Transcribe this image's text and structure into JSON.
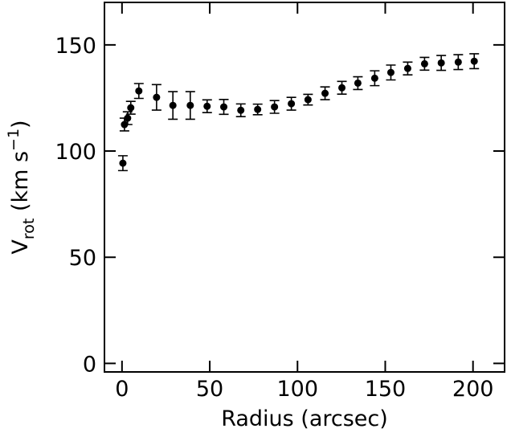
{
  "chart_data": {
    "type": "scatter",
    "xlabel": "Radius (arcsec)",
    "ylabel": {
      "main": "V",
      "sub": "rot",
      "rest": " (km s",
      "sup": "−1",
      "end": ")"
    },
    "color": "#000000",
    "x": [
      0.5,
      1.4,
      3.2,
      5,
      9.6,
      19.7,
      29,
      38.9,
      48.5,
      58,
      67.7,
      77.3,
      86.9,
      96.5,
      106,
      115.7,
      125.3,
      134.4,
      144,
      153.2,
      162.8,
      172.4,
      181.9,
      191.6,
      200.7
    ],
    "values": [
      94.3,
      112.5,
      115.5,
      120.4,
      128.3,
      125.3,
      121.5,
      121.5,
      121.1,
      120.8,
      119.2,
      119.6,
      120.8,
      122.3,
      124.2,
      127.2,
      129.8,
      132,
      134.3,
      137,
      138.9,
      141.1,
      141.5,
      141.9,
      142.3
    ],
    "errors": [
      3.5,
      3,
      3,
      3,
      3.5,
      6,
      6.5,
      6.5,
      3,
      3.5,
      3,
      2.5,
      3,
      3,
      2.5,
      3,
      3,
      3,
      3.5,
      3.5,
      3,
      3,
      3.5,
      3.5,
      3.5
    ],
    "xlim": [
      -10,
      218
    ],
    "ylim": [
      -4,
      170
    ],
    "xticks": [
      0,
      50,
      100,
      150,
      200
    ],
    "yticks": [
      0,
      50,
      100,
      150
    ]
  }
}
